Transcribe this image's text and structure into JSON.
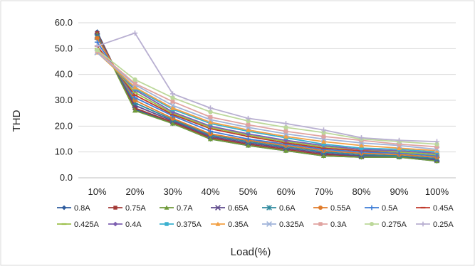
{
  "chart_data": {
    "type": "line",
    "title": "",
    "xlabel": "Load(%)",
    "ylabel": "THD",
    "categories": [
      "10%",
      "20%",
      "30%",
      "40%",
      "50%",
      "60%",
      "70%",
      "80%",
      "90%",
      "100%"
    ],
    "ylim": [
      0,
      60
    ],
    "yticks": [
      "0.0",
      "10.0",
      "20.0",
      "30.0",
      "40.0",
      "50.0",
      "60.0"
    ],
    "grid": "horizontal",
    "legend": "bottom",
    "series": [
      {
        "name": "0.8A",
        "color": "#2e5c9e",
        "marker": "diamond",
        "values": [
          56.5,
          26.5,
          21.0,
          15.0,
          12.5,
          10.5,
          8.5,
          8.0,
          8.0,
          6.5
        ]
      },
      {
        "name": "0.75A",
        "color": "#a33a36",
        "marker": "square",
        "values": [
          56.0,
          27.0,
          21.5,
          15.5,
          13.0,
          11.0,
          9.0,
          8.5,
          8.0,
          7.0
        ]
      },
      {
        "name": "0.7A",
        "color": "#6f9a3a",
        "marker": "triangle",
        "values": [
          55.5,
          26.0,
          21.0,
          15.0,
          12.5,
          10.5,
          8.5,
          8.0,
          8.0,
          6.5
        ]
      },
      {
        "name": "0.65A",
        "color": "#5e4a8c",
        "marker": "x",
        "values": [
          55.0,
          28.0,
          22.0,
          16.0,
          13.5,
          11.5,
          9.5,
          8.5,
          8.5,
          7.0
        ]
      },
      {
        "name": "0.6A",
        "color": "#2f8a9e",
        "marker": "star",
        "values": [
          54.5,
          29.0,
          22.5,
          16.5,
          14.0,
          12.0,
          10.0,
          9.0,
          8.5,
          7.5
        ]
      },
      {
        "name": "0.55A",
        "color": "#e07b2a",
        "marker": "circle",
        "values": [
          54.0,
          30.0,
          23.0,
          17.0,
          14.5,
          12.5,
          10.5,
          9.5,
          9.0,
          8.0
        ]
      },
      {
        "name": "0.5A",
        "color": "#3d7cd6",
        "marker": "plus",
        "values": [
          52.5,
          31.0,
          24.0,
          18.0,
          15.0,
          13.0,
          11.0,
          10.0,
          9.5,
          8.5
        ]
      },
      {
        "name": "0.45A",
        "color": "#c03a2b",
        "marker": "dash",
        "values": [
          51.0,
          32.0,
          24.5,
          19.0,
          16.0,
          13.5,
          11.5,
          10.5,
          10.0,
          9.0
        ]
      },
      {
        "name": "0.425A",
        "color": "#9bbf4a",
        "marker": "dash",
        "values": [
          50.0,
          33.0,
          25.0,
          19.5,
          16.5,
          14.0,
          12.0,
          11.0,
          10.0,
          9.0
        ]
      },
      {
        "name": "0.4A",
        "color": "#7d5fb0",
        "marker": "diamond",
        "values": [
          49.5,
          34.0,
          25.5,
          20.0,
          17.0,
          14.5,
          12.5,
          11.0,
          10.5,
          9.5
        ]
      },
      {
        "name": "0.375A",
        "color": "#3ab0cf",
        "marker": "square",
        "values": [
          49.0,
          34.5,
          26.5,
          21.0,
          18.0,
          15.5,
          13.0,
          11.5,
          11.0,
          10.0
        ]
      },
      {
        "name": "0.35A",
        "color": "#f2a043",
        "marker": "triangle",
        "values": [
          48.5,
          35.0,
          27.0,
          21.5,
          18.5,
          16.0,
          14.0,
          12.5,
          11.5,
          10.5
        ]
      },
      {
        "name": "0.325A",
        "color": "#9fb3d9",
        "marker": "x",
        "values": [
          48.5,
          36.0,
          28.0,
          22.5,
          19.5,
          17.0,
          15.0,
          13.5,
          12.5,
          11.0
        ]
      },
      {
        "name": "0.3A",
        "color": "#e0a3a0",
        "marker": "square",
        "values": [
          49.0,
          36.5,
          29.5,
          23.5,
          20.5,
          18.0,
          16.0,
          14.5,
          13.0,
          12.0
        ]
      },
      {
        "name": "0.275A",
        "color": "#bcd89a",
        "marker": "circle",
        "values": [
          49.5,
          38.0,
          31.0,
          25.5,
          22.0,
          19.5,
          17.5,
          15.0,
          14.0,
          13.0
        ]
      },
      {
        "name": "0.25A",
        "color": "#b8afd1",
        "marker": "plus",
        "values": [
          51.0,
          56.0,
          32.5,
          27.0,
          23.0,
          21.0,
          18.5,
          15.5,
          14.5,
          14.0
        ]
      }
    ]
  }
}
